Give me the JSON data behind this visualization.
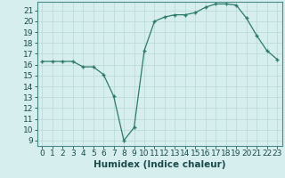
{
  "x": [
    0,
    1,
    2,
    3,
    4,
    5,
    6,
    7,
    8,
    9,
    10,
    11,
    12,
    13,
    14,
    15,
    16,
    17,
    18,
    19,
    20,
    21,
    22,
    23
  ],
  "y": [
    16.3,
    16.3,
    16.3,
    16.3,
    15.8,
    15.8,
    15.1,
    13.1,
    9.0,
    10.2,
    17.3,
    20.0,
    20.4,
    20.6,
    20.6,
    20.8,
    21.3,
    21.6,
    21.6,
    21.5,
    20.3,
    18.7,
    17.3,
    16.5
  ],
  "xlabel": "Humidex (Indice chaleur)",
  "ylim_min": 8.5,
  "ylim_max": 21.8,
  "xlim_min": -0.5,
  "xlim_max": 23.5,
  "yticks": [
    9,
    10,
    11,
    12,
    13,
    14,
    15,
    16,
    17,
    18,
    19,
    20,
    21
  ],
  "xticks": [
    0,
    1,
    2,
    3,
    4,
    5,
    6,
    7,
    8,
    9,
    10,
    11,
    12,
    13,
    14,
    15,
    16,
    17,
    18,
    19,
    20,
    21,
    22,
    23
  ],
  "line_color": "#2d7a6a",
  "marker": "+",
  "bg_color": "#d6eeee",
  "grid_color": "#b8d8d8",
  "xlabel_fontsize": 7.5,
  "tick_fontsize": 6.5
}
